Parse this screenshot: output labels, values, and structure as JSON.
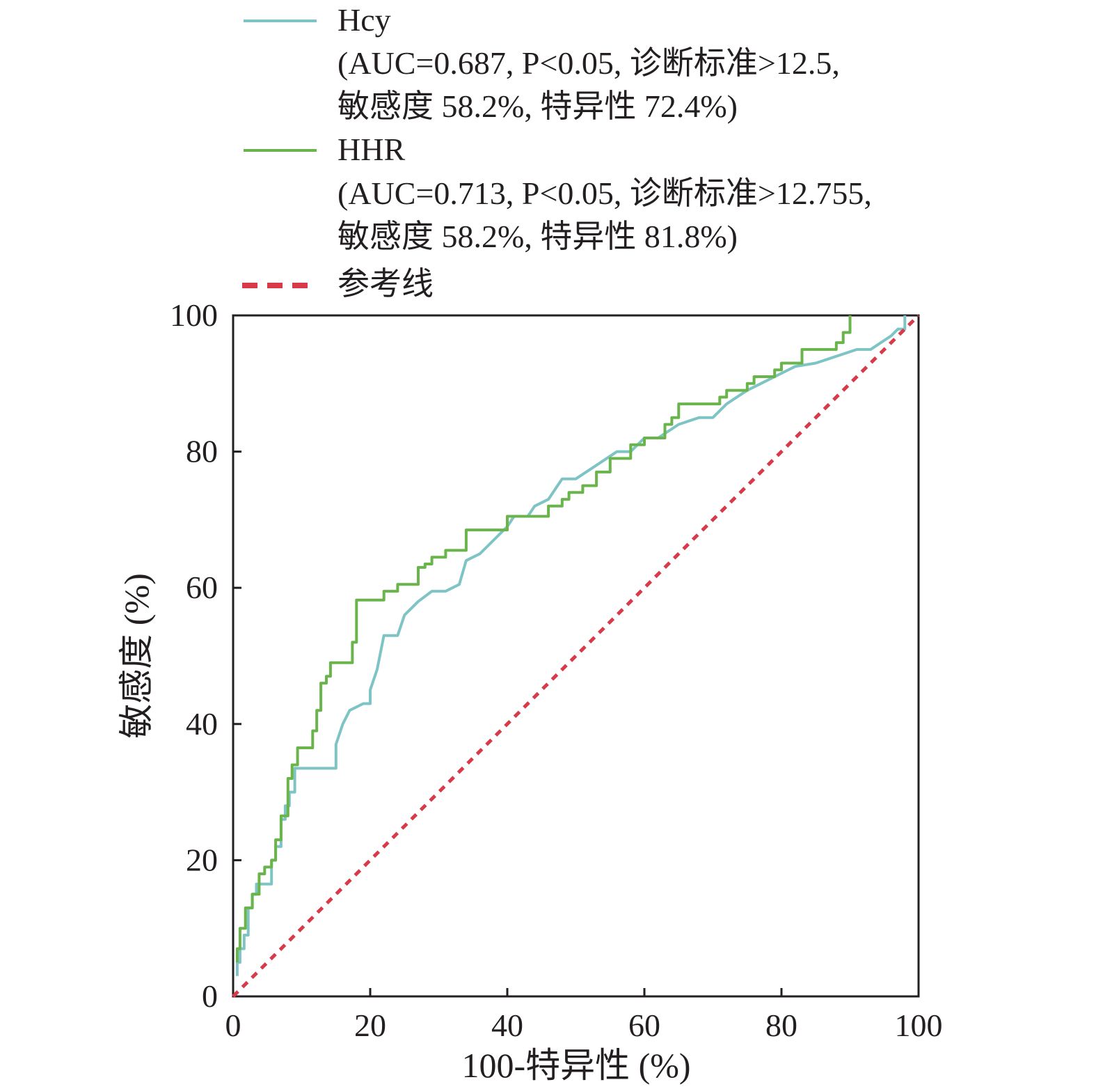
{
  "chart_data": {
    "type": "line",
    "title": "",
    "xlabel": "100-特异性 (%)",
    "ylabel": "敏感度 (%)",
    "xlim": [
      0,
      100
    ],
    "ylim": [
      0,
      100
    ],
    "x_ticks": [
      "0",
      "20",
      "40",
      "60",
      "80",
      "100"
    ],
    "y_ticks": [
      "0",
      "20",
      "40",
      "60",
      "80",
      "100"
    ],
    "grid": false,
    "legend_position": "top",
    "legend": [
      {
        "name": "Hcy",
        "detail_lines": [
          "(AUC=0.687, P<0.05, 诊断标准>12.5,",
          "敏感度 58.2%, 特异性 72.4%)"
        ]
      },
      {
        "name": "HHR",
        "detail_lines": [
          "(AUC=0.713, P<0.05, 诊断标准>12.755,",
          "敏感度 58.2%, 特异性 81.8%)"
        ]
      },
      {
        "name": "参考线",
        "detail_lines": []
      }
    ],
    "series": [
      {
        "name": "Hcy",
        "color": "#7ec4c4",
        "style": "solid",
        "points": [
          [
            0.6,
            3
          ],
          [
            0.6,
            5
          ],
          [
            1,
            5
          ],
          [
            1,
            7
          ],
          [
            1.6,
            7
          ],
          [
            1.6,
            9
          ],
          [
            2.2,
            9
          ],
          [
            2.2,
            13
          ],
          [
            2.8,
            13
          ],
          [
            2.8,
            15
          ],
          [
            3.4,
            15
          ],
          [
            3.4,
            16.5
          ],
          [
            5.6,
            16.5
          ],
          [
            5.6,
            20
          ],
          [
            6.2,
            20
          ],
          [
            6.2,
            22
          ],
          [
            7,
            22
          ],
          [
            7,
            26
          ],
          [
            7.6,
            26
          ],
          [
            7.6,
            28
          ],
          [
            8.2,
            28
          ],
          [
            8.2,
            30
          ],
          [
            9,
            30
          ],
          [
            9,
            33.5
          ],
          [
            15,
            33.5
          ],
          [
            15,
            37
          ],
          [
            16,
            40
          ],
          [
            17,
            42
          ],
          [
            19,
            43
          ],
          [
            20,
            43
          ],
          [
            20,
            45
          ],
          [
            21,
            48
          ],
          [
            22,
            53
          ],
          [
            24,
            53
          ],
          [
            25,
            56
          ],
          [
            27,
            58
          ],
          [
            29,
            59.5
          ],
          [
            31,
            59.5
          ],
          [
            33,
            60.5
          ],
          [
            34,
            64
          ],
          [
            36,
            65
          ],
          [
            37,
            66
          ],
          [
            40,
            69
          ],
          [
            41,
            70.5
          ],
          [
            43,
            70.5
          ],
          [
            44,
            72
          ],
          [
            46,
            73
          ],
          [
            48,
            76
          ],
          [
            50,
            76
          ],
          [
            53,
            78
          ],
          [
            56,
            80
          ],
          [
            58,
            80
          ],
          [
            60,
            82
          ],
          [
            62,
            82
          ],
          [
            65,
            84
          ],
          [
            68,
            85
          ],
          [
            70,
            85
          ],
          [
            72,
            87
          ],
          [
            75,
            89
          ],
          [
            77,
            90
          ],
          [
            79,
            91
          ],
          [
            82,
            92.5
          ],
          [
            85,
            93
          ],
          [
            88,
            94
          ],
          [
            91,
            95
          ],
          [
            93,
            95
          ],
          [
            96,
            97
          ],
          [
            97,
            98
          ],
          [
            98,
            98
          ],
          [
            98,
            100
          ]
        ]
      },
      {
        "name": "HHR",
        "color": "#6ab44c",
        "style": "solid",
        "points": [
          [
            0.6,
            5
          ],
          [
            0.6,
            7
          ],
          [
            1,
            7
          ],
          [
            1,
            10
          ],
          [
            1.8,
            10
          ],
          [
            1.8,
            13
          ],
          [
            2.8,
            13
          ],
          [
            2.8,
            15
          ],
          [
            3.8,
            15
          ],
          [
            3.8,
            18
          ],
          [
            4.6,
            18
          ],
          [
            4.6,
            19
          ],
          [
            5.6,
            19
          ],
          [
            5.6,
            20
          ],
          [
            6.2,
            20
          ],
          [
            6.2,
            23
          ],
          [
            7,
            23
          ],
          [
            7,
            26.5
          ],
          [
            8,
            26.5
          ],
          [
            8,
            32
          ],
          [
            8.6,
            32
          ],
          [
            8.6,
            34
          ],
          [
            9.4,
            34
          ],
          [
            9.4,
            36.5
          ],
          [
            11.6,
            36.5
          ],
          [
            11.6,
            39
          ],
          [
            12.2,
            39
          ],
          [
            12.2,
            42
          ],
          [
            12.8,
            42
          ],
          [
            12.8,
            46
          ],
          [
            13.6,
            46
          ],
          [
            13.6,
            47
          ],
          [
            14.2,
            47
          ],
          [
            14.2,
            49
          ],
          [
            17.4,
            49
          ],
          [
            17.4,
            52
          ],
          [
            18,
            52
          ],
          [
            18,
            58.2
          ],
          [
            22,
            58.2
          ],
          [
            22,
            59.5
          ],
          [
            24,
            59.5
          ],
          [
            24,
            60.5
          ],
          [
            27,
            60.5
          ],
          [
            27,
            63
          ],
          [
            28,
            63
          ],
          [
            28,
            63.5
          ],
          [
            29,
            63.5
          ],
          [
            29,
            64.5
          ],
          [
            31,
            64.5
          ],
          [
            31,
            65.5
          ],
          [
            34,
            65.5
          ],
          [
            34,
            68.5
          ],
          [
            40,
            68.5
          ],
          [
            40,
            70.5
          ],
          [
            46,
            70.5
          ],
          [
            46,
            72
          ],
          [
            48,
            72
          ],
          [
            48,
            73
          ],
          [
            49,
            73
          ],
          [
            49,
            74
          ],
          [
            51,
            74
          ],
          [
            51,
            75
          ],
          [
            53,
            75
          ],
          [
            53,
            77
          ],
          [
            55,
            77
          ],
          [
            55,
            79
          ],
          [
            58,
            79
          ],
          [
            58,
            81
          ],
          [
            60,
            81
          ],
          [
            60,
            82
          ],
          [
            63,
            82
          ],
          [
            63,
            84
          ],
          [
            64,
            84
          ],
          [
            64,
            85
          ],
          [
            65,
            85
          ],
          [
            65,
            87
          ],
          [
            71,
            87
          ],
          [
            71,
            88
          ],
          [
            72,
            88
          ],
          [
            72,
            89
          ],
          [
            75,
            89
          ],
          [
            75,
            90
          ],
          [
            76,
            90
          ],
          [
            76,
            91
          ],
          [
            79,
            91
          ],
          [
            79,
            92
          ],
          [
            80,
            92
          ],
          [
            80,
            93
          ],
          [
            83,
            93
          ],
          [
            83,
            95
          ],
          [
            88,
            95
          ],
          [
            88,
            96
          ],
          [
            89,
            96
          ],
          [
            89,
            97.5
          ],
          [
            90,
            97.5
          ],
          [
            90,
            100
          ]
        ]
      },
      {
        "name": "参考线",
        "color": "#d83a4a",
        "style": "dashed",
        "points": [
          [
            0,
            0
          ],
          [
            100,
            100
          ]
        ]
      }
    ]
  }
}
